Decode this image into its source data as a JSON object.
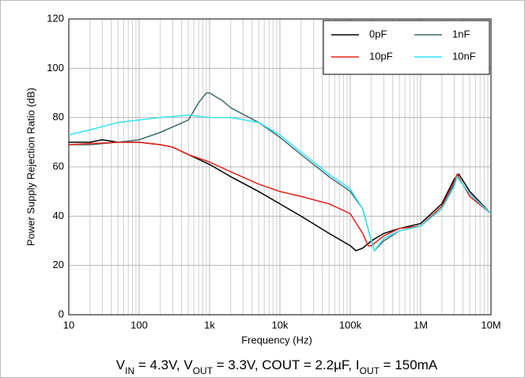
{
  "chart_data": {
    "type": "line",
    "x_label": "Frequency (Hz)",
    "y_label": "Power Supply Rejection Ratio (dB)",
    "caption_parts": [
      "V",
      "IN",
      " = 4.3V, V",
      "OUT",
      " = 3.3V, COUT = 2.2µF, I",
      "OUT",
      " = 150mA"
    ],
    "x_log": true,
    "grid": true,
    "legend": "upper right",
    "xlim": [
      10,
      10000000
    ],
    "ylim": [
      0,
      120
    ],
    "xticks": [
      10,
      100,
      {
        "value": 1000,
        "label": "1k"
      },
      {
        "value": 10000,
        "label": "10k"
      },
      {
        "value": 100000,
        "label": "100k"
      },
      {
        "value": 1000000,
        "label": "1M"
      },
      {
        "value": 10000000,
        "label": "10M"
      }
    ],
    "yticks": [
      0,
      20,
      40,
      60,
      80,
      100,
      120
    ],
    "series": [
      {
        "name": "0pF",
        "color": "#000000",
        "x": [
          10,
          20,
          30,
          50,
          100,
          200,
          300,
          500,
          1000,
          2000,
          5000,
          10000,
          20000,
          50000,
          100000,
          120000,
          150000,
          200000,
          300000,
          500000,
          1000000,
          2000000,
          3000000,
          3500000,
          5000000,
          10000000
        ],
        "values": [
          70,
          70,
          71,
          70,
          70,
          69,
          68,
          65,
          61,
          56,
          50,
          45,
          40,
          33,
          28,
          26,
          27,
          30,
          33,
          35,
          37,
          45,
          55,
          57,
          50,
          41
        ]
      },
      {
        "name": "1nF",
        "color": "#3f6b6e",
        "x": [
          10,
          20,
          50,
          100,
          200,
          500,
          700,
          900,
          1000,
          1500,
          2000,
          5000,
          10000,
          20000,
          50000,
          80000,
          100000,
          150000,
          200000,
          220000,
          300000,
          500000,
          1000000,
          2000000,
          3000000,
          3300000,
          5000000,
          10000000
        ],
        "values": [
          69,
          69,
          70,
          71,
          74,
          79,
          86,
          90,
          90,
          87,
          84,
          78,
          72,
          65,
          56,
          52,
          50,
          43,
          30,
          26,
          30,
          34,
          36,
          43,
          53,
          56,
          49,
          41
        ]
      },
      {
        "name": "10pF",
        "color": "#e8201c",
        "x": [
          10,
          50,
          100,
          200,
          300,
          500,
          1000,
          2000,
          5000,
          10000,
          20000,
          50000,
          100000,
          150000,
          180000,
          200000,
          300000,
          500000,
          1000000,
          2000000,
          3000000,
          3300000,
          5000000,
          10000000
        ],
        "values": [
          69,
          70,
          70,
          69,
          68,
          65,
          62,
          58,
          53,
          50,
          48,
          45,
          41,
          33,
          28,
          28,
          32,
          35,
          36,
          44,
          54,
          57,
          48,
          41
        ]
      },
      {
        "name": "10nF",
        "color": "#33e6f0",
        "x": [
          10,
          20,
          50,
          100,
          200,
          500,
          1000,
          2000,
          5000,
          10000,
          20000,
          50000,
          80000,
          100000,
          150000,
          200000,
          220000,
          300000,
          500000,
          1000000,
          2000000,
          3000000,
          3300000,
          5000000,
          10000000
        ],
        "values": [
          73,
          75,
          78,
          79,
          80,
          81,
          80,
          80,
          78,
          73,
          66,
          57,
          53,
          51,
          43,
          30,
          26,
          31,
          34,
          36,
          43,
          52,
          56,
          49,
          41
        ]
      }
    ]
  }
}
